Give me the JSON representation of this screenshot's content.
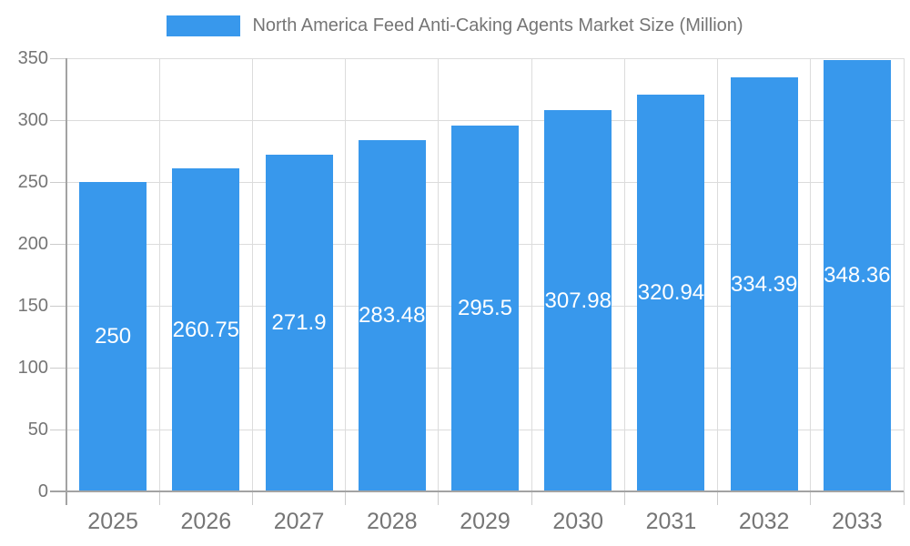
{
  "title": "North America Feed Anti-Caking Agents Market Size (Million)",
  "legend": {
    "label": "North America Feed Anti-Caking Agents Market Size (Million)"
  },
  "chart_data": {
    "type": "bar",
    "title": "North America Feed Anti-Caking Agents Market Size (Million)",
    "categories": [
      "2025",
      "2026",
      "2027",
      "2028",
      "2029",
      "2030",
      "2031",
      "2032",
      "2033"
    ],
    "values": [
      250,
      260.75,
      271.9,
      283.48,
      295.5,
      307.98,
      320.94,
      334.39,
      348.36
    ],
    "value_labels": [
      "250",
      "260.75",
      "271.9",
      "283.48",
      "295.5",
      "307.98",
      "320.94",
      "334.39",
      "348.36"
    ],
    "xlabel": "",
    "ylabel": "",
    "ylim": [
      0,
      350
    ],
    "yticks": [
      0,
      50,
      100,
      150,
      200,
      250,
      300,
      350
    ],
    "grid": true,
    "legend_position": "top-center",
    "value_labels_position": "inside-center"
  },
  "colors": {
    "bar": "#3898EC",
    "grid": "#dcdcdc",
    "tick": "#cccccc",
    "axis": "#a3a3a3",
    "text": "#757575",
    "value_label": "#ffffff",
    "background": "#ffffff"
  }
}
